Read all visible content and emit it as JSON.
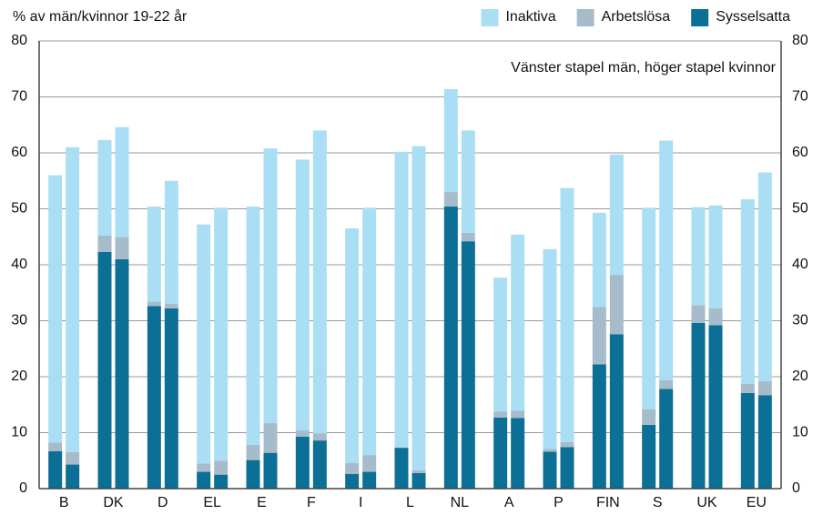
{
  "chart_data": {
    "type": "stacked-bar-pairs",
    "title": "% av män/kvinnor 19-22 år",
    "annotation": "Vänster stapel män, höger stapel kvinnor",
    "categories": [
      "B",
      "DK",
      "D",
      "EL",
      "E",
      "F",
      "I",
      "L",
      "NL",
      "A",
      "P",
      "FIN",
      "S",
      "UK",
      "EU"
    ],
    "series": [
      {
        "name": "Sysselsatta",
        "color": "#0b6f96",
        "values": [
          [
            6.7,
            4.3
          ],
          [
            42.3,
            41
          ],
          [
            32.6,
            32.2
          ],
          [
            3,
            2.5
          ],
          [
            5.1,
            6.4
          ],
          [
            9.3,
            8.6
          ],
          [
            2.6,
            3
          ],
          [
            7.3,
            2.8
          ],
          [
            50.4,
            44.2
          ],
          [
            12.7,
            12.6
          ],
          [
            6.6,
            7.4
          ],
          [
            22.2,
            27.6
          ],
          [
            11.4,
            17.8
          ],
          [
            29.6,
            29.2
          ],
          [
            17.1,
            16.7
          ]
        ]
      },
      {
        "name": "Arbetslösa",
        "color": "#a6bccb",
        "values": [
          [
            1.5,
            2.2
          ],
          [
            2.9,
            4
          ],
          [
            0.8,
            0.8
          ],
          [
            1.5,
            2.5
          ],
          [
            2.7,
            5.3
          ],
          [
            1.1,
            1.3
          ],
          [
            2,
            3
          ],
          [
            0,
            0.5
          ],
          [
            2.6,
            1.5
          ],
          [
            1.1,
            1.3
          ],
          [
            0.5,
            0.9
          ],
          [
            10.3,
            10.6
          ],
          [
            2.8,
            1.6
          ],
          [
            3.2,
            3
          ],
          [
            1.6,
            2.5
          ]
        ]
      },
      {
        "name": "Inaktiva",
        "color": "#a9def4",
        "values": [
          [
            47.8,
            54.5
          ],
          [
            17.1,
            19.6
          ],
          [
            17,
            22
          ],
          [
            42.7,
            45.2
          ],
          [
            42.6,
            49.1
          ],
          [
            48.4,
            54.1
          ],
          [
            41.9,
            44.2
          ],
          [
            52.9,
            57.9
          ],
          [
            18.4,
            18.3
          ],
          [
            23.9,
            31.5
          ],
          [
            35.7,
            45.4
          ],
          [
            16.8,
            21.5
          ],
          [
            36,
            42.8
          ],
          [
            17.5,
            18.4
          ],
          [
            33,
            37.3
          ]
        ]
      }
    ],
    "ylim": [
      0,
      80
    ],
    "yticks": [
      0,
      10,
      20,
      30,
      40,
      50,
      60,
      70,
      80
    ],
    "y2lim": [
      0,
      80
    ],
    "y2ticks": [
      0,
      10,
      20,
      30,
      40,
      50,
      60,
      70,
      80
    ],
    "grid": true
  }
}
